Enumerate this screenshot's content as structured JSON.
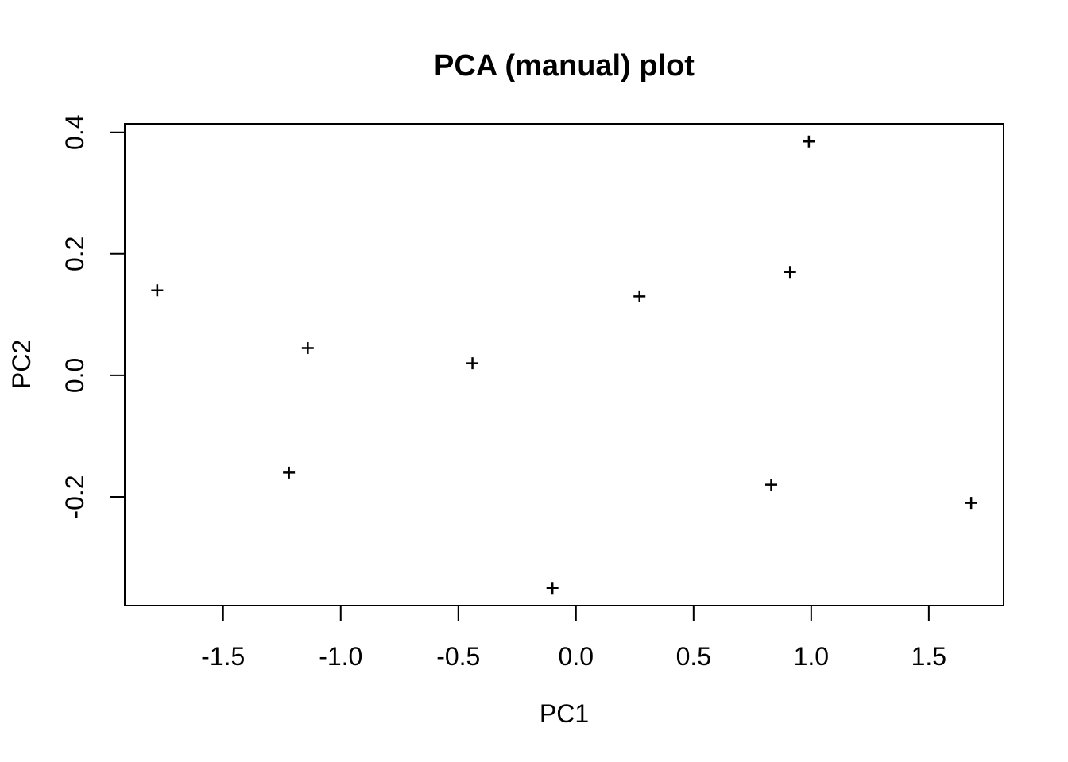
{
  "chart_data": {
    "type": "scatter",
    "title": "PCA (manual) plot",
    "xlabel": "PC1",
    "ylabel": "PC2",
    "marker": "plus-sign",
    "marker_color": "#000000",
    "background_color": "#ffffff",
    "frame_color": "#000000",
    "grid": false,
    "legend": "none",
    "xlim": [
      -1.918,
      1.818
    ],
    "ylim": [
      -0.379,
      0.414
    ],
    "x_ticks": {
      "values": [
        -1.5,
        -1.0,
        -0.5,
        0.0,
        0.5,
        1.0,
        1.5
      ],
      "labels": [
        "-1.5",
        "-1.0",
        "-0.5",
        "0.0",
        "0.5",
        "1.0",
        "1.5"
      ]
    },
    "y_ticks": {
      "values": [
        -0.2,
        0.0,
        0.2,
        0.4
      ],
      "labels": [
        "-0.2",
        "0.0",
        "0.2",
        "0.4"
      ]
    },
    "points": [
      {
        "x": -1.78,
        "y": 0.14
      },
      {
        "x": -1.22,
        "y": -0.16
      },
      {
        "x": -1.14,
        "y": 0.045
      },
      {
        "x": -0.44,
        "y": 0.02
      },
      {
        "x": -0.1,
        "y": -0.35
      },
      {
        "x": 0.27,
        "y": 0.13
      },
      {
        "x": 0.83,
        "y": -0.18
      },
      {
        "x": 0.91,
        "y": 0.17
      },
      {
        "x": 0.99,
        "y": 0.385
      },
      {
        "x": 1.68,
        "y": -0.21
      }
    ]
  }
}
